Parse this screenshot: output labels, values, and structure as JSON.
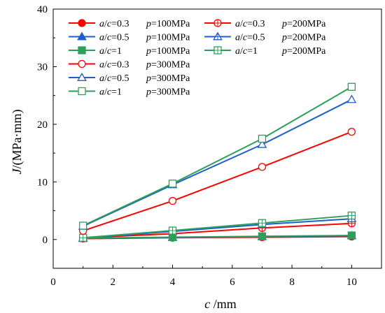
{
  "chart_data": {
    "type": "line",
    "xlabel": "c /mm",
    "ylabel": "J/(MPa·mm)",
    "xlim": [
      0,
      11
    ],
    "ylim": [
      -5,
      40
    ],
    "xticks": [
      0,
      2,
      4,
      6,
      8,
      10
    ],
    "yticks": [
      0,
      10,
      20,
      30,
      40
    ],
    "x": [
      1,
      4,
      7,
      10
    ],
    "legend_position": "top-left",
    "series": [
      {
        "name": "a/c=0.3  p=100MPa",
        "ratio": "0.3",
        "pressure": "100MPa",
        "color": "#ff0000",
        "marker": "circle",
        "fill": "filled",
        "values": [
          0.15,
          0.3,
          0.4,
          0.5
        ]
      },
      {
        "name": "a/c=0.3  p=200MPa",
        "ratio": "0.3",
        "pressure": "200MPa",
        "color": "#ff0000",
        "marker": "circle",
        "fill": "crossed",
        "values": [
          0.3,
          1.0,
          2.0,
          2.8
        ]
      },
      {
        "name": "a/c=0.5  p=100MPa",
        "ratio": "0.5",
        "pressure": "100MPa",
        "color": "#1f5fc8",
        "marker": "triangle",
        "fill": "filled",
        "values": [
          0.2,
          0.35,
          0.5,
          0.65
        ]
      },
      {
        "name": "a/c=0.5  p=200MPa",
        "ratio": "0.5",
        "pressure": "200MPa",
        "color": "#1f5fc8",
        "marker": "triangle",
        "fill": "crossed",
        "values": [
          0.25,
          1.4,
          2.6,
          3.6
        ]
      },
      {
        "name": "a/c=1  p=100MPa",
        "ratio": "1",
        "pressure": "100MPa",
        "color": "#2ca05a",
        "marker": "square",
        "fill": "filled",
        "values": [
          0.25,
          0.4,
          0.55,
          0.7
        ]
      },
      {
        "name": "a/c=1  p=200MPa",
        "ratio": "1",
        "pressure": "200MPa",
        "color": "#2ca05a",
        "marker": "square",
        "fill": "crossed",
        "values": [
          0.3,
          1.55,
          2.85,
          4.15
        ]
      },
      {
        "name": "a/c=0.3  p=300MPa",
        "ratio": "0.3",
        "pressure": "300MPa",
        "color": "#ff0000",
        "marker": "circle",
        "fill": "open",
        "values": [
          1.5,
          6.7,
          12.6,
          18.7
        ]
      },
      {
        "name": "a/c=0.5  p=300MPa",
        "ratio": "0.5",
        "pressure": "300MPa",
        "color": "#1f5fc8",
        "marker": "triangle",
        "fill": "open",
        "values": [
          2.3,
          9.5,
          16.5,
          24.3
        ]
      },
      {
        "name": "a/c=1  p=300MPa",
        "ratio": "1",
        "pressure": "300MPa",
        "color": "#2ca05a",
        "marker": "square",
        "fill": "open",
        "values": [
          2.4,
          9.7,
          17.5,
          26.5
        ]
      }
    ]
  }
}
